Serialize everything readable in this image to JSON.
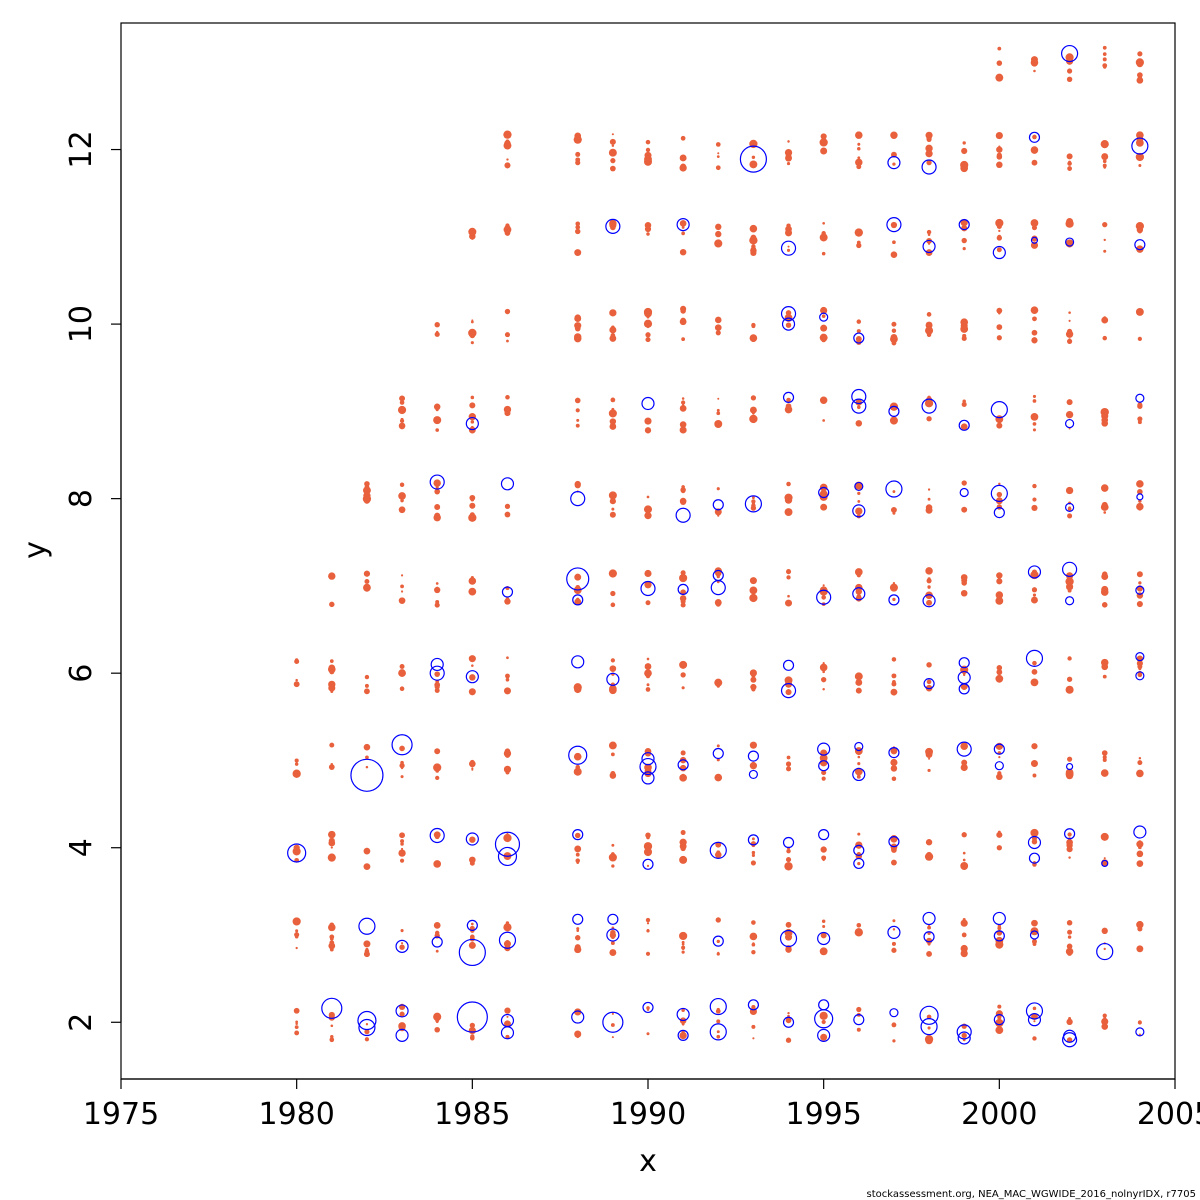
{
  "chart_data": {
    "type": "scatter",
    "title": "",
    "xlabel": "x",
    "ylabel": "y",
    "xlim": [
      1975,
      2005
    ],
    "ylim": [
      1.35,
      13.45
    ],
    "xticks": [
      1975,
      1980,
      1985,
      1990,
      1995,
      2000,
      2005
    ],
    "yticks": [
      2,
      4,
      6,
      8,
      10,
      12
    ],
    "grid": false,
    "legend": "none",
    "credit": "stockassessment.org, NEA_MAC_WGWIDE_2016_nolnyrIDX, r7705",
    "colors": {
      "positive": "#0000ff",
      "negative": "#e8603c"
    },
    "marker_style": {
      "positive": "open-circle",
      "negative": "filled-dot"
    },
    "series": [
      {
        "sign": "positive",
        "points": [
          [
            1980,
            3.94,
            0.9
          ],
          [
            1981,
            2.16,
            1.0
          ],
          [
            1982,
            4.83,
            1.6
          ],
          [
            1982,
            3.1,
            0.8
          ],
          [
            1982,
            2.02,
            0.9
          ],
          [
            1982,
            1.94,
            0.8
          ],
          [
            1983,
            5.18,
            1.0
          ],
          [
            1983,
            2.13,
            0.6
          ],
          [
            1983,
            1.85,
            0.6
          ],
          [
            1983,
            2.87,
            0.6
          ],
          [
            1984,
            8.19,
            0.7
          ],
          [
            1984,
            6.1,
            0.6
          ],
          [
            1984,
            6.0,
            0.7
          ],
          [
            1984,
            4.14,
            0.7
          ],
          [
            1984,
            2.92,
            0.5
          ],
          [
            1985,
            8.86,
            0.6
          ],
          [
            1985,
            5.96,
            0.6
          ],
          [
            1985,
            4.1,
            0.6
          ],
          [
            1985,
            2.8,
            1.3
          ],
          [
            1985,
            2.06,
            1.5
          ],
          [
            1985,
            3.11,
            0.5
          ],
          [
            1986,
            8.17,
            0.6
          ],
          [
            1986,
            6.93,
            0.5
          ],
          [
            1986,
            4.04,
            1.2
          ],
          [
            1986,
            3.9,
            0.9
          ],
          [
            1986,
            2.94,
            0.8
          ],
          [
            1986,
            2.02,
            0.6
          ],
          [
            1986,
            1.88,
            0.6
          ],
          [
            1988,
            7.08,
            1.1
          ],
          [
            1988,
            8.0,
            0.7
          ],
          [
            1988,
            5.06,
            0.9
          ],
          [
            1988,
            6.13,
            0.6
          ],
          [
            1988,
            6.84,
            0.5
          ],
          [
            1988,
            3.18,
            0.5
          ],
          [
            1988,
            2.06,
            0.6
          ],
          [
            1988,
            4.15,
            0.5
          ],
          [
            1989,
            11.12,
            0.7
          ],
          [
            1989,
            5.93,
            0.6
          ],
          [
            1989,
            2.0,
            1.0
          ],
          [
            1989,
            3.18,
            0.5
          ],
          [
            1989,
            3.0,
            0.6
          ],
          [
            1990,
            9.09,
            0.6
          ],
          [
            1990,
            6.97,
            0.7
          ],
          [
            1990,
            5.02,
            0.6
          ],
          [
            1990,
            4.8,
            0.6
          ],
          [
            1990,
            4.93,
            0.8
          ],
          [
            1990,
            3.81,
            0.5
          ],
          [
            1990,
            2.17,
            0.5
          ],
          [
            1991,
            11.14,
            0.6
          ],
          [
            1991,
            7.81,
            0.7
          ],
          [
            1991,
            6.96,
            0.5
          ],
          [
            1991,
            4.95,
            0.5
          ],
          [
            1991,
            2.09,
            0.6
          ],
          [
            1991,
            1.85,
            0.5
          ],
          [
            1992,
            6.98,
            0.7
          ],
          [
            1992,
            7.12,
            0.5
          ],
          [
            1992,
            5.08,
            0.5
          ],
          [
            1992,
            3.97,
            0.8
          ],
          [
            1992,
            2.18,
            0.8
          ],
          [
            1992,
            1.89,
            0.8
          ],
          [
            1992,
            7.93,
            0.5
          ],
          [
            1992,
            2.93,
            0.5
          ],
          [
            1993,
            11.89,
            1.3
          ],
          [
            1993,
            7.94,
            0.8
          ],
          [
            1993,
            5.05,
            0.5
          ],
          [
            1993,
            4.84,
            0.4
          ],
          [
            1993,
            4.09,
            0.5
          ],
          [
            1993,
            2.2,
            0.5
          ],
          [
            1994,
            10.87,
            0.7
          ],
          [
            1994,
            10.12,
            0.7
          ],
          [
            1994,
            10.0,
            0.6
          ],
          [
            1994,
            9.16,
            0.5
          ],
          [
            1994,
            5.8,
            0.7
          ],
          [
            1994,
            6.09,
            0.5
          ],
          [
            1994,
            4.06,
            0.5
          ],
          [
            1994,
            2.96,
            0.8
          ],
          [
            1994,
            2.0,
            0.5
          ],
          [
            1995,
            10.08,
            0.4
          ],
          [
            1995,
            8.07,
            0.5
          ],
          [
            1995,
            6.87,
            0.7
          ],
          [
            1995,
            5.13,
            0.6
          ],
          [
            1995,
            4.94,
            0.5
          ],
          [
            1995,
            4.15,
            0.5
          ],
          [
            1995,
            2.96,
            0.6
          ],
          [
            1995,
            2.04,
            0.9
          ],
          [
            1995,
            2.2,
            0.5
          ],
          [
            1995,
            1.85,
            0.6
          ],
          [
            1996,
            9.17,
            0.7
          ],
          [
            1996,
            9.06,
            0.7
          ],
          [
            1996,
            8.14,
            0.4
          ],
          [
            1996,
            7.86,
            0.6
          ],
          [
            1996,
            6.91,
            0.6
          ],
          [
            1996,
            5.16,
            0.4
          ],
          [
            1996,
            4.84,
            0.6
          ],
          [
            1996,
            3.97,
            0.5
          ],
          [
            1996,
            3.82,
            0.5
          ],
          [
            1996,
            9.84,
            0.5
          ],
          [
            1996,
            2.03,
            0.5
          ],
          [
            1997,
            11.85,
            0.6
          ],
          [
            1997,
            11.14,
            0.7
          ],
          [
            1997,
            9.0,
            0.5
          ],
          [
            1997,
            8.11,
            0.8
          ],
          [
            1997,
            6.84,
            0.5
          ],
          [
            1997,
            5.09,
            0.5
          ],
          [
            1997,
            4.07,
            0.5
          ],
          [
            1997,
            3.03,
            0.6
          ],
          [
            1997,
            2.11,
            0.4
          ],
          [
            1998,
            11.8,
            0.7
          ],
          [
            1998,
            10.89,
            0.6
          ],
          [
            1998,
            9.06,
            0.7
          ],
          [
            1998,
            6.83,
            0.6
          ],
          [
            1998,
            5.88,
            0.5
          ],
          [
            1998,
            3.19,
            0.6
          ],
          [
            1998,
            2.98,
            0.5
          ],
          [
            1998,
            2.08,
            0.9
          ],
          [
            1998,
            1.95,
            0.8
          ],
          [
            1999,
            11.14,
            0.5
          ],
          [
            1999,
            8.84,
            0.5
          ],
          [
            1999,
            8.07,
            0.4
          ],
          [
            1999,
            6.12,
            0.5
          ],
          [
            1999,
            5.95,
            0.6
          ],
          [
            1999,
            5.82,
            0.5
          ],
          [
            1999,
            5.13,
            0.7
          ],
          [
            1999,
            1.89,
            0.7
          ],
          [
            1999,
            1.82,
            0.6
          ],
          [
            2000,
            10.82,
            0.6
          ],
          [
            2000,
            9.02,
            0.8
          ],
          [
            2000,
            8.06,
            0.8
          ],
          [
            2000,
            7.84,
            0.5
          ],
          [
            2000,
            5.13,
            0.5
          ],
          [
            2000,
            4.94,
            0.4
          ],
          [
            2000,
            3.19,
            0.6
          ],
          [
            2000,
            2.99,
            0.5
          ],
          [
            2000,
            2.03,
            0.5
          ],
          [
            2001,
            12.14,
            0.5
          ],
          [
            2001,
            10.96,
            0.3
          ],
          [
            2001,
            7.16,
            0.6
          ],
          [
            2001,
            6.17,
            0.8
          ],
          [
            2001,
            4.06,
            0.6
          ],
          [
            2001,
            3.88,
            0.5
          ],
          [
            2001,
            3.0,
            0.4
          ],
          [
            2001,
            2.13,
            0.8
          ],
          [
            2001,
            2.03,
            0.6
          ],
          [
            2002,
            13.1,
            0.8
          ],
          [
            2002,
            10.94,
            0.4
          ],
          [
            2002,
            8.86,
            0.4
          ],
          [
            2002,
            7.9,
            0.4
          ],
          [
            2002,
            7.19,
            0.7
          ],
          [
            2002,
            6.83,
            0.4
          ],
          [
            2002,
            4.16,
            0.5
          ],
          [
            2002,
            4.93,
            0.3
          ],
          [
            2002,
            1.8,
            0.7
          ],
          [
            2002,
            1.84,
            0.6
          ],
          [
            2003,
            2.81,
            0.8
          ],
          [
            2003,
            3.82,
            0.3
          ],
          [
            2004,
            12.04,
            0.8
          ],
          [
            2004,
            10.91,
            0.5
          ],
          [
            2004,
            9.15,
            0.4
          ],
          [
            2004,
            8.02,
            0.3
          ],
          [
            2004,
            6.95,
            0.4
          ],
          [
            2004,
            6.19,
            0.4
          ],
          [
            2004,
            5.97,
            0.4
          ],
          [
            2004,
            4.18,
            0.6
          ],
          [
            2004,
            1.89,
            0.4
          ]
        ]
      },
      {
        "sign": "negative",
        "points_note": "small filled residual dots",
        "points": []
      }
    ]
  }
}
